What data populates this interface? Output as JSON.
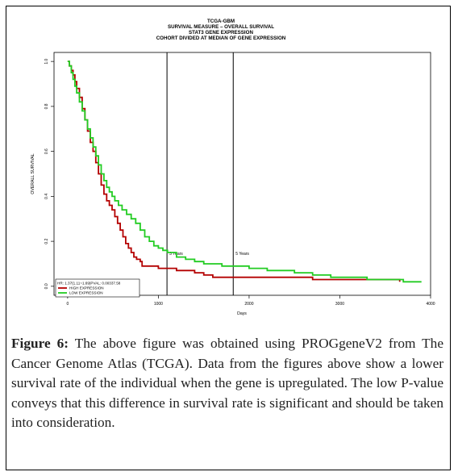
{
  "chart_data": {
    "type": "line",
    "title": [
      "TCGA-GBM",
      "SURVIVAL MEASURE –  OVERALL SURVIVAL",
      "STAT3  GENE EXPRESSION",
      "COHORT DIVIDED AT MEDIAN OF GENE EXPRESSION"
    ],
    "xlabel": "Days",
    "ylabel": "OVERALL SURVIVAL",
    "xlim": [
      -150,
      4000
    ],
    "ylim": [
      -0.04,
      1.04
    ],
    "x_ticks": [
      0,
      1000,
      2000,
      3000,
      4000
    ],
    "x_tick_labels": [
      "0",
      "1000",
      "2000",
      "3000",
      "4000"
    ],
    "y_ticks": [
      0.0,
      0.2,
      0.4,
      0.6,
      0.8,
      1.0
    ],
    "y_tick_labels": [
      "0.0",
      "0.2",
      "0.4",
      "0.6",
      "0.8",
      "1.0"
    ],
    "vlines": [
      {
        "x": 1095,
        "label": "3 Years"
      },
      {
        "x": 1825,
        "label": "5 Years"
      }
    ],
    "legend": {
      "placement": "bottom-left",
      "stat": "HR: 1.37(1.11~1.69)PVAL: 0.00337.58",
      "entries": [
        "HIGH EXPRESSION",
        "LOW EXPRESSION"
      ]
    },
    "series": [
      {
        "name": "HIGH EXPRESSION",
        "color": "#b40000",
        "x": [
          0,
          20,
          40,
          60,
          80,
          100,
          130,
          160,
          190,
          220,
          250,
          280,
          310,
          340,
          370,
          400,
          430,
          460,
          490,
          520,
          550,
          580,
          610,
          640,
          670,
          700,
          730,
          760,
          800,
          820,
          900,
          1000,
          1100,
          1200,
          1300,
          1400,
          1500,
          1600,
          1700,
          2200,
          2700,
          3650,
          3660
        ],
        "y": [
          1.0,
          0.98,
          0.96,
          0.94,
          0.91,
          0.88,
          0.84,
          0.79,
          0.74,
          0.69,
          0.64,
          0.6,
          0.55,
          0.5,
          0.45,
          0.41,
          0.38,
          0.36,
          0.34,
          0.31,
          0.28,
          0.25,
          0.22,
          0.19,
          0.17,
          0.15,
          0.13,
          0.12,
          0.11,
          0.09,
          0.09,
          0.08,
          0.08,
          0.07,
          0.07,
          0.06,
          0.05,
          0.04,
          0.04,
          0.04,
          0.03,
          0.03,
          0.02
        ]
      },
      {
        "name": "LOW EXPRESSION",
        "color": "#22cc22",
        "x": [
          0,
          20,
          40,
          60,
          80,
          100,
          130,
          160,
          190,
          220,
          250,
          280,
          310,
          340,
          370,
          400,
          430,
          460,
          490,
          520,
          560,
          600,
          650,
          700,
          750,
          800,
          850,
          900,
          950,
          1000,
          1050,
          1100,
          1200,
          1300,
          1400,
          1500,
          1600,
          1700,
          1800,
          2000,
          2200,
          2500,
          2700,
          2900,
          3100,
          3300,
          3500,
          3700,
          3900
        ],
        "y": [
          1.0,
          0.98,
          0.95,
          0.92,
          0.89,
          0.86,
          0.82,
          0.78,
          0.74,
          0.7,
          0.66,
          0.62,
          0.58,
          0.54,
          0.5,
          0.47,
          0.44,
          0.42,
          0.4,
          0.38,
          0.36,
          0.34,
          0.32,
          0.3,
          0.28,
          0.25,
          0.22,
          0.2,
          0.18,
          0.17,
          0.16,
          0.15,
          0.13,
          0.12,
          0.11,
          0.1,
          0.1,
          0.09,
          0.09,
          0.08,
          0.07,
          0.06,
          0.05,
          0.04,
          0.04,
          0.03,
          0.03,
          0.02,
          0.02
        ]
      }
    ]
  },
  "caption": {
    "label": "Figure 6:",
    "text": " The above figure was obtained using PROGgeneV2 from The Cancer Genome Atlas (TCGA). Data from the figures above show a lower survival rate of the individual when the gene is upregulated. The low P-value conveys that this difference in survival rate is significant and should be taken into consideration."
  }
}
